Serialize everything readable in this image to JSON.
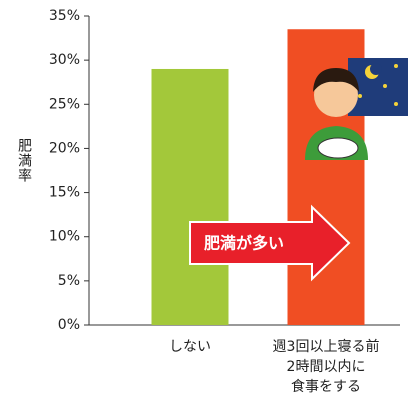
{
  "chart_data": {
    "type": "bar",
    "y_label": "肥満率",
    "categories": [
      "しない",
      "週3回以上寝る前\n2時間以内に\n食事をする"
    ],
    "values": [
      29,
      33.5
    ],
    "colors": [
      "#a3c83a",
      "#f04e23"
    ],
    "ylim": [
      0,
      35
    ],
    "yticks": [
      {
        "value": 0,
        "label": "0%"
      },
      {
        "value": 5,
        "label": "5%"
      },
      {
        "value": 10,
        "label": "10%"
      },
      {
        "value": 15,
        "label": "15%"
      },
      {
        "value": 20,
        "label": "20%"
      },
      {
        "value": 25,
        "label": "25%"
      },
      {
        "value": 30,
        "label": "30%"
      },
      {
        "value": 35,
        "label": "35%"
      }
    ],
    "annotation": "肥満が多い"
  }
}
